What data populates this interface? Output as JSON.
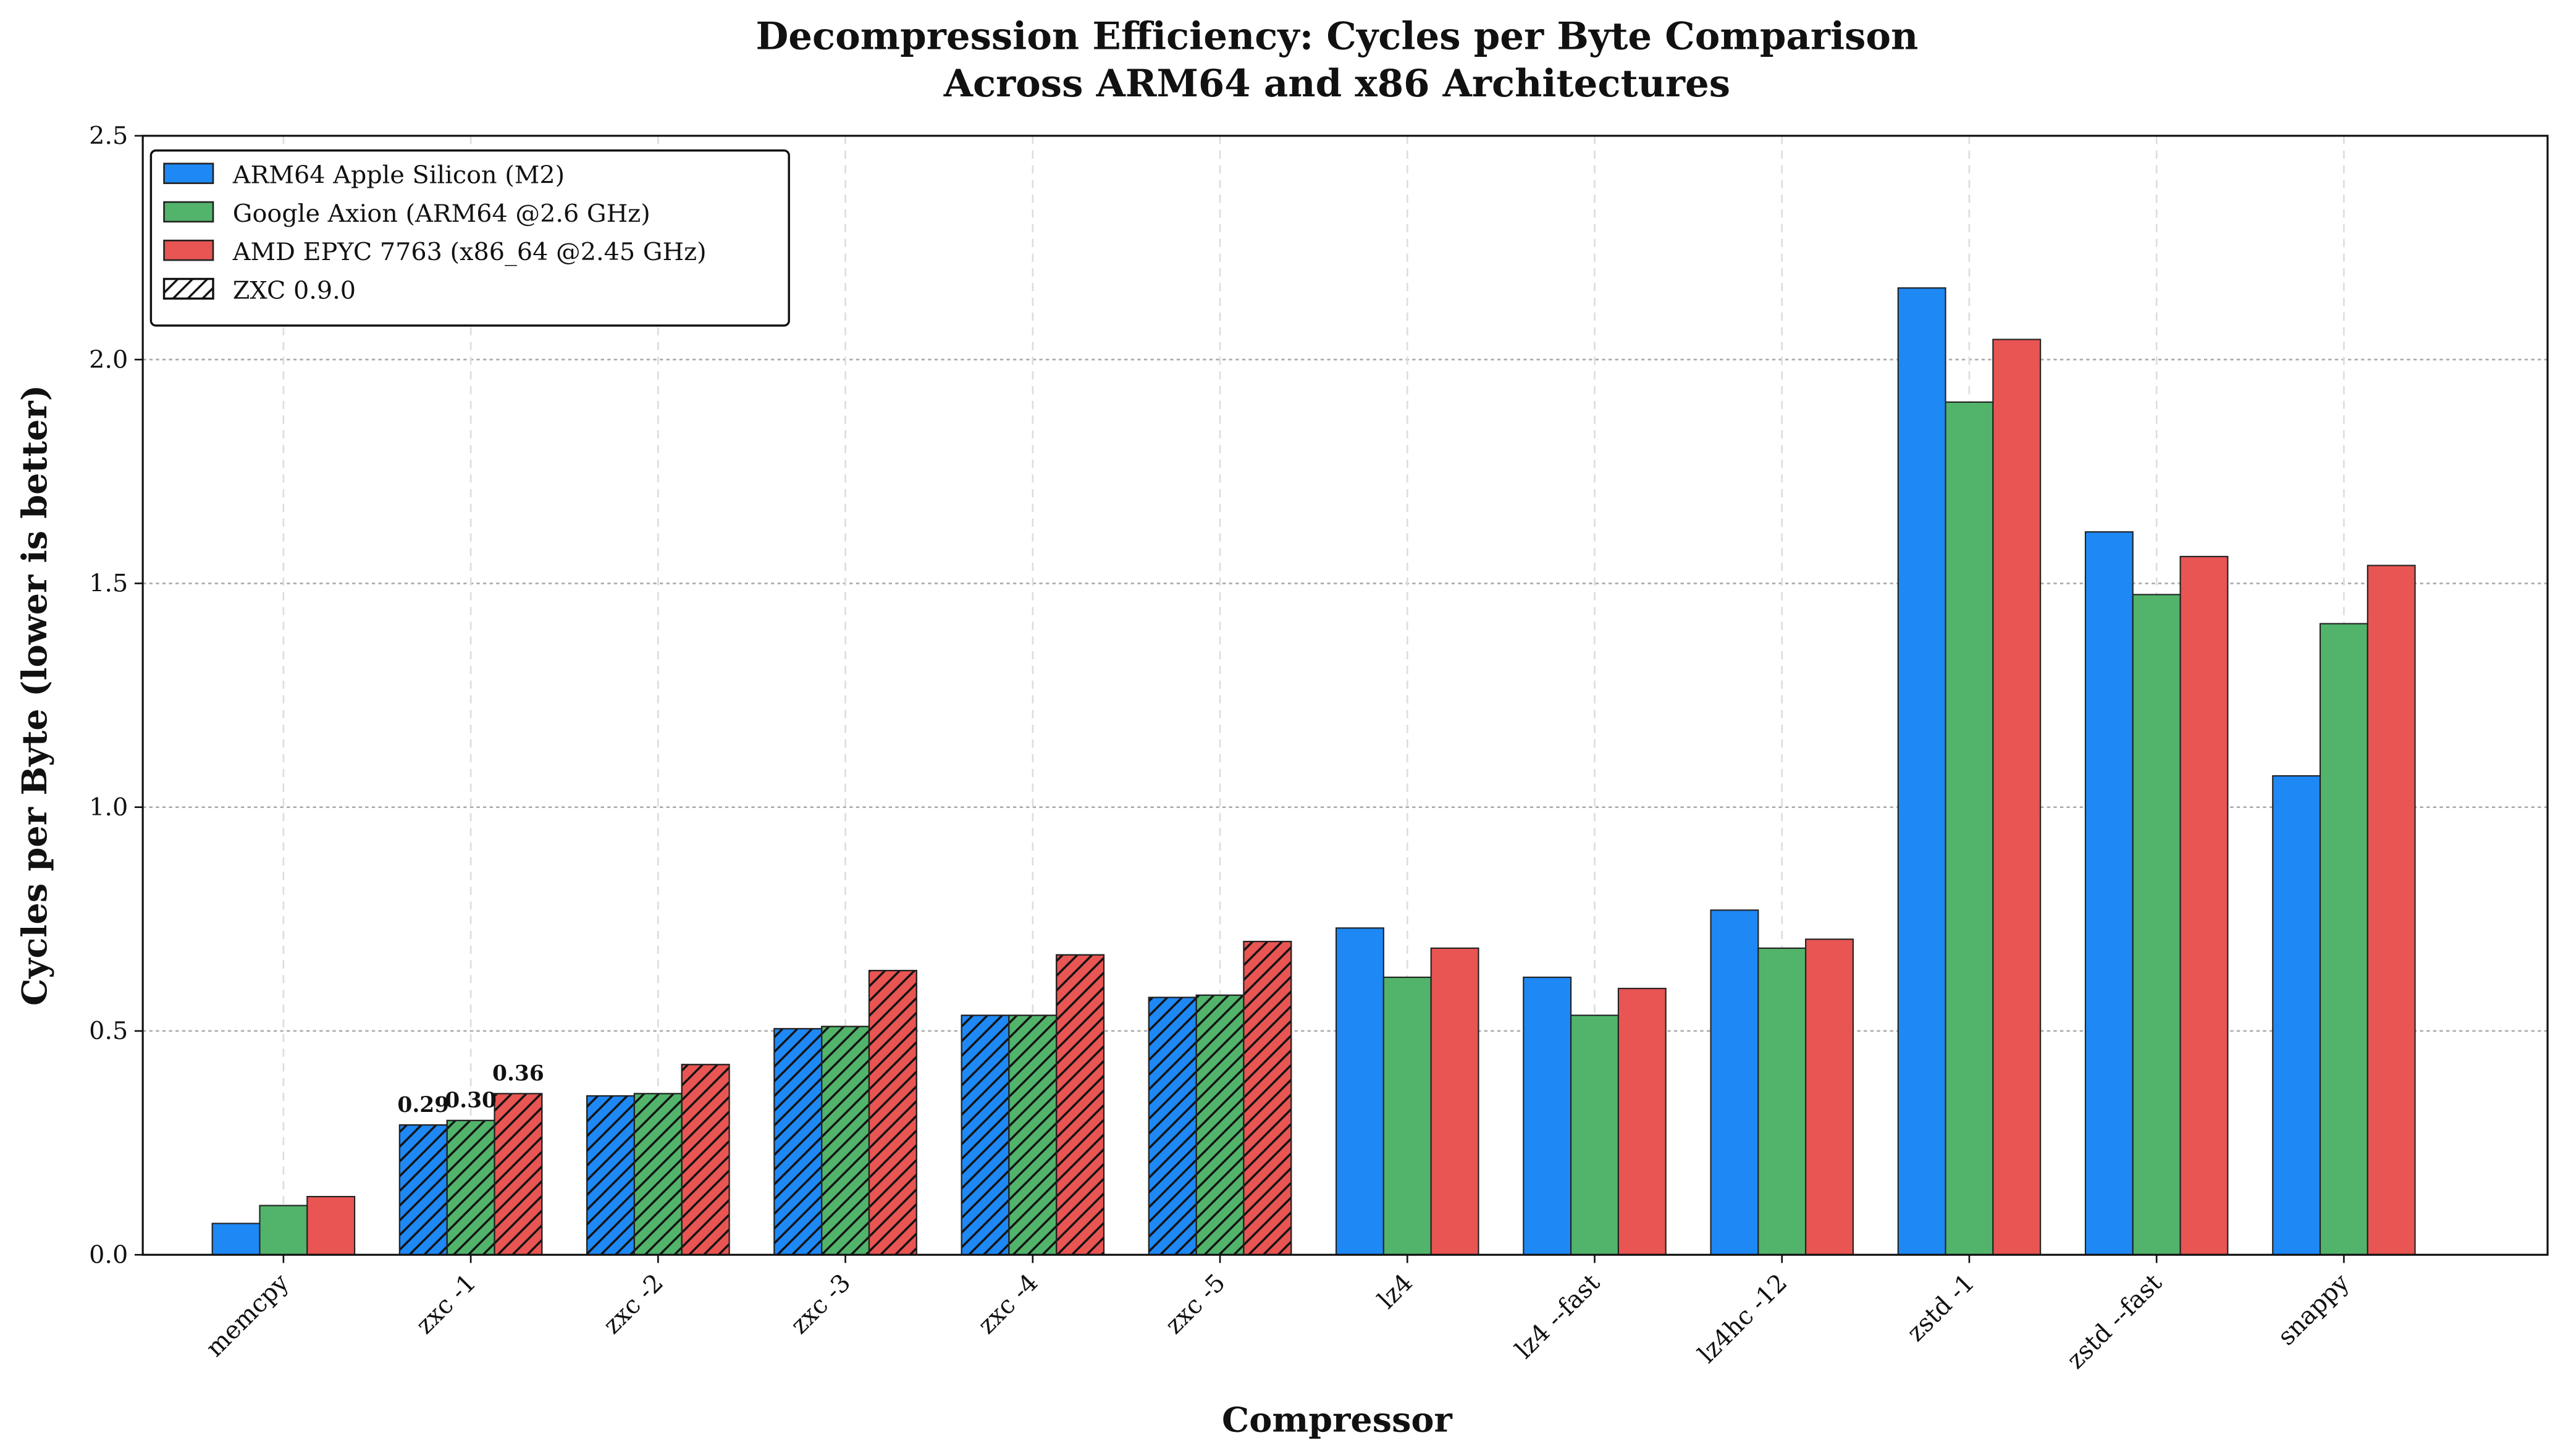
{
  "chart_data": {
    "type": "bar",
    "title": "Decompression Efficiency: Cycles per Byte Comparison\nAcross ARM64 and x86 Architectures",
    "title_lines": [
      "Decompression Efficiency: Cycles per Byte Comparison",
      "Across ARM64 and x86 Architectures"
    ],
    "xlabel": "Compressor",
    "ylabel": "Cycles per Byte (lower is better)",
    "ylim": [
      0,
      2.5
    ],
    "yticks": [
      0.0,
      0.5,
      1.0,
      1.5,
      2.0,
      2.5
    ],
    "ytick_labels": [
      "0.0",
      "0.5",
      "1.0",
      "1.5",
      "2.0",
      "2.5"
    ],
    "grid": true,
    "legend_position": "top-left",
    "categories": [
      "memcpy",
      "zxc -1",
      "zxc -2",
      "zxc -3",
      "zxc -4",
      "zxc -5",
      "lz4",
      "lz4 --fast",
      "lz4hc -12",
      "zstd -1",
      "zstd --fast",
      "snappy"
    ],
    "hatched_categories": [
      "zxc -1",
      "zxc -2",
      "zxc -3",
      "zxc -4",
      "zxc -5"
    ],
    "series": [
      {
        "name": "ARM64 Apple Silicon (M2)",
        "color": "#1e88f5",
        "values": [
          0.07,
          0.29,
          0.355,
          0.505,
          0.535,
          0.575,
          0.73,
          0.62,
          0.77,
          2.16,
          1.615,
          1.07
        ]
      },
      {
        "name": "Google Axion (ARM64 @2.6 GHz)",
        "color": "#52b46b",
        "values": [
          0.11,
          0.3,
          0.36,
          0.51,
          0.535,
          0.58,
          0.62,
          0.535,
          0.685,
          1.905,
          1.475,
          1.41
        ]
      },
      {
        "name": "AMD EPYC 7763 (x86_64 @2.45 GHz)",
        "color": "#e85552",
        "values": [
          0.13,
          0.36,
          0.425,
          0.635,
          0.67,
          0.7,
          0.685,
          0.595,
          0.705,
          2.045,
          1.56,
          1.54
        ]
      }
    ],
    "hatch_legend": "ZXC 0.9.0",
    "data_labels": [
      {
        "category": "zxc -1",
        "series": 0,
        "text": "0.29"
      },
      {
        "category": "zxc -1",
        "series": 1,
        "text": "0.30"
      },
      {
        "category": "zxc -1",
        "series": 2,
        "text": "0.36"
      }
    ]
  }
}
